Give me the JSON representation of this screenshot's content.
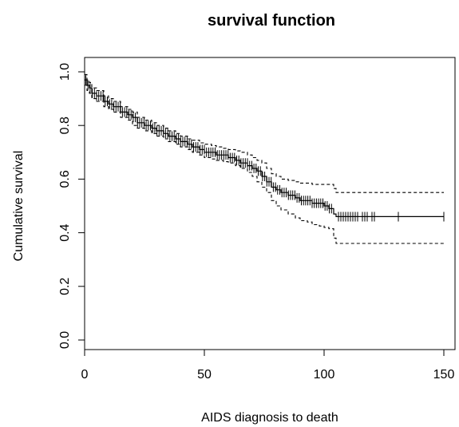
{
  "chart_data": {
    "type": "line",
    "title": "survival function",
    "xlabel": "AIDS diagnosis to death",
    "ylabel": "Cumulative survival",
    "xlim": [
      0,
      150
    ],
    "ylim": [
      0,
      1
    ],
    "x_ticks": [
      0,
      50,
      100,
      150
    ],
    "y_ticks": [
      0.0,
      0.2,
      0.4,
      0.6,
      0.8,
      1.0
    ],
    "x_tick_labels": [
      "0",
      "50",
      "100",
      "150"
    ],
    "y_tick_labels": [
      "0.0",
      "0.2",
      "0.4",
      "0.6",
      "0.8",
      "1.0"
    ],
    "grid": false,
    "legend": "none",
    "series": [
      {
        "role": "estimate",
        "line_style": "solid",
        "censor_marks": true,
        "x": [
          0,
          1,
          2,
          3,
          5,
          8,
          10,
          12,
          15,
          18,
          20,
          22,
          25,
          28,
          30,
          33,
          35,
          38,
          40,
          43,
          45,
          48,
          50,
          53,
          55,
          58,
          60,
          63,
          65,
          68,
          70,
          72,
          74,
          76,
          78,
          80,
          82,
          85,
          88,
          90,
          93,
          95,
          98,
          100,
          102,
          104,
          105,
          150
        ],
        "y": [
          0.97,
          0.95,
          0.94,
          0.92,
          0.91,
          0.89,
          0.88,
          0.87,
          0.85,
          0.84,
          0.83,
          0.81,
          0.8,
          0.79,
          0.78,
          0.77,
          0.76,
          0.75,
          0.74,
          0.73,
          0.72,
          0.71,
          0.7,
          0.7,
          0.69,
          0.69,
          0.68,
          0.67,
          0.66,
          0.65,
          0.64,
          0.63,
          0.61,
          0.59,
          0.57,
          0.56,
          0.55,
          0.54,
          0.53,
          0.52,
          0.52,
          0.51,
          0.51,
          0.5,
          0.49,
          0.47,
          0.46,
          0.46
        ]
      },
      {
        "role": "upper-confidence",
        "line_style": "dashed",
        "x": [
          0,
          1,
          2,
          3,
          5,
          8,
          10,
          12,
          15,
          18,
          20,
          22,
          25,
          28,
          30,
          33,
          35,
          38,
          40,
          43,
          45,
          48,
          50,
          53,
          55,
          58,
          60,
          63,
          65,
          68,
          70,
          72,
          74,
          76,
          78,
          80,
          82,
          85,
          88,
          90,
          93,
          95,
          98,
          100,
          102,
          104,
          105,
          150
        ],
        "y": [
          0.99,
          0.97,
          0.96,
          0.94,
          0.93,
          0.91,
          0.9,
          0.89,
          0.87,
          0.86,
          0.85,
          0.83,
          0.82,
          0.81,
          0.8,
          0.79,
          0.78,
          0.77,
          0.76,
          0.75,
          0.745,
          0.735,
          0.73,
          0.725,
          0.72,
          0.715,
          0.71,
          0.705,
          0.7,
          0.69,
          0.68,
          0.67,
          0.66,
          0.64,
          0.62,
          0.61,
          0.6,
          0.595,
          0.59,
          0.585,
          0.585,
          0.58,
          0.58,
          0.58,
          0.58,
          0.565,
          0.55,
          0.55
        ]
      },
      {
        "role": "lower-confidence",
        "line_style": "dashed",
        "x": [
          0,
          1,
          2,
          3,
          5,
          8,
          10,
          12,
          15,
          18,
          20,
          22,
          25,
          28,
          30,
          33,
          35,
          38,
          40,
          43,
          45,
          48,
          50,
          53,
          55,
          58,
          60,
          63,
          65,
          68,
          70,
          72,
          74,
          76,
          78,
          80,
          82,
          85,
          88,
          90,
          93,
          95,
          98,
          100,
          102,
          104,
          105,
          150
        ],
        "y": [
          0.95,
          0.93,
          0.92,
          0.9,
          0.89,
          0.87,
          0.86,
          0.85,
          0.83,
          0.82,
          0.8,
          0.79,
          0.78,
          0.77,
          0.76,
          0.75,
          0.74,
          0.73,
          0.72,
          0.71,
          0.7,
          0.69,
          0.68,
          0.675,
          0.67,
          0.665,
          0.66,
          0.65,
          0.64,
          0.625,
          0.61,
          0.59,
          0.57,
          0.55,
          0.52,
          0.5,
          0.485,
          0.47,
          0.455,
          0.445,
          0.44,
          0.43,
          0.425,
          0.42,
          0.415,
          0.38,
          0.36,
          0.36
        ]
      }
    ],
    "censor_times": [
      106,
      107,
      108,
      109,
      110,
      111,
      112,
      113,
      114,
      116,
      117,
      118,
      120,
      121,
      131,
      150
    ]
  }
}
